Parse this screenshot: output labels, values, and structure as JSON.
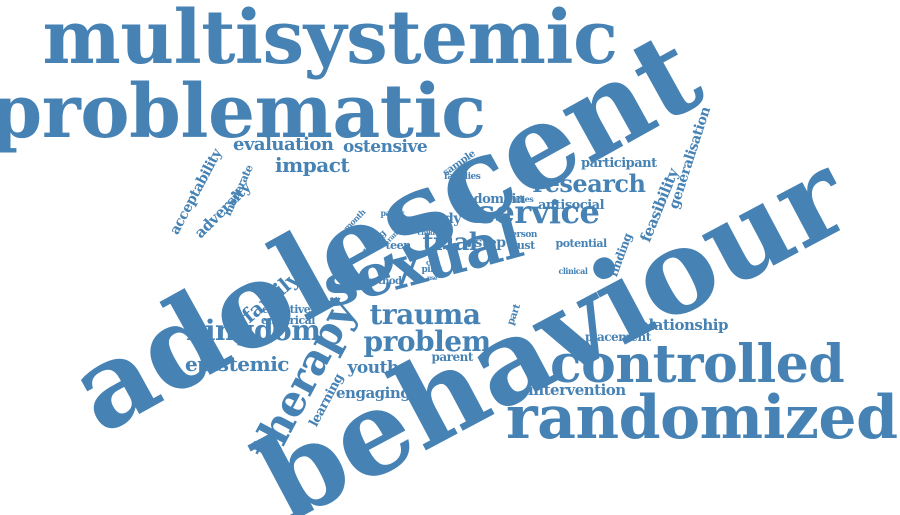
{
  "colors": {
    "background": "#ffffff",
    "word": "#4682b4"
  },
  "words": [
    {
      "id": "multisystemic",
      "text": "multisystemic"
    },
    {
      "id": "problematic",
      "text": "problematic"
    },
    {
      "id": "adolescent",
      "text": "adolescent"
    },
    {
      "id": "behaviour",
      "text": "behaviour"
    },
    {
      "id": "sexual",
      "text": "sexual"
    },
    {
      "id": "controlled",
      "text": "controlled"
    },
    {
      "id": "randomized",
      "text": "randomized"
    },
    {
      "id": "therapy",
      "text": "therapy"
    },
    {
      "id": "trauma",
      "text": "trauma"
    },
    {
      "id": "problem",
      "text": "problem"
    },
    {
      "id": "kingdom",
      "text": "kingdom"
    },
    {
      "id": "service",
      "text": "service"
    },
    {
      "id": "research",
      "text": "research"
    },
    {
      "id": "trial",
      "text": "trial"
    },
    {
      "id": "impact",
      "text": "impact"
    },
    {
      "id": "evaluation",
      "text": "evaluation"
    },
    {
      "id": "ostensive",
      "text": "ostensive"
    },
    {
      "id": "epistemic",
      "text": "epistemic"
    },
    {
      "id": "family",
      "text": "family"
    },
    {
      "id": "youth",
      "text": "youth"
    },
    {
      "id": "engaging",
      "text": "engaging"
    },
    {
      "id": "intervention",
      "text": "intervention"
    },
    {
      "id": "relationship",
      "text": "relationship"
    },
    {
      "id": "placement",
      "text": "placement"
    },
    {
      "id": "parent",
      "text": "parent"
    },
    {
      "id": "learning",
      "text": "learning"
    },
    {
      "id": "empirical",
      "text": "empirical"
    },
    {
      "id": "effective",
      "text": "effective"
    },
    {
      "id": "method",
      "text": "method"
    },
    {
      "id": "study",
      "text": "study"
    },
    {
      "id": "step",
      "text": "step"
    },
    {
      "id": "domain",
      "text": "domain"
    },
    {
      "id": "antisocial",
      "text": "antisocial"
    },
    {
      "id": "participant",
      "text": "participant"
    },
    {
      "id": "feasibility",
      "text": "feasibility"
    },
    {
      "id": "generalisation",
      "text": "generalisation"
    },
    {
      "id": "acceptability",
      "text": "acceptability"
    },
    {
      "id": "adversity",
      "text": "adversity"
    },
    {
      "id": "moderate",
      "text": "moderate"
    },
    {
      "id": "finding",
      "text": "finding"
    },
    {
      "id": "potential",
      "text": "potential"
    },
    {
      "id": "trust",
      "text": "trust"
    },
    {
      "id": "person",
      "text": "person"
    },
    {
      "id": "teen",
      "text": "teen"
    },
    {
      "id": "young",
      "text": "young"
    },
    {
      "id": "range",
      "text": "range"
    },
    {
      "id": "paper",
      "text": "paper"
    },
    {
      "id": "month",
      "text": "month"
    },
    {
      "id": "sample",
      "text": "sample"
    },
    {
      "id": "families",
      "text": "families"
    },
    {
      "id": "studies",
      "text": "studies"
    },
    {
      "id": "clinical",
      "text": "clinical"
    },
    {
      "id": "pilot",
      "text": "pilot"
    },
    {
      "id": "cue",
      "text": "cue"
    },
    {
      "id": "child",
      "text": "child"
    },
    {
      "id": "part",
      "text": "part"
    },
    {
      "id": "use",
      "text": "use"
    }
  ]
}
